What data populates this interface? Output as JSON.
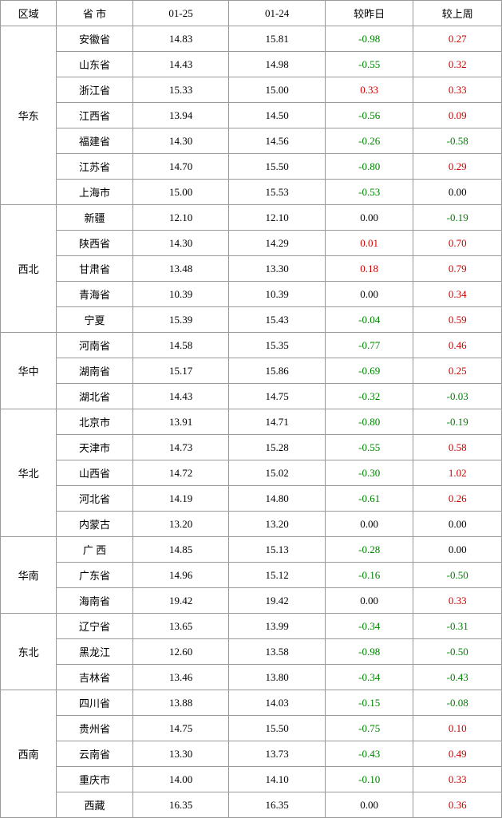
{
  "columns": [
    "区域",
    "省 市",
    "01-25",
    "01-24",
    "较昨日",
    "较上周"
  ],
  "colors": {
    "positive": "#cc0000",
    "negative": "#008000",
    "zero": "#000000"
  },
  "regions": [
    {
      "name": "华东",
      "rows": [
        {
          "prov": "安徽省",
          "d1": "14.83",
          "d2": "15.81",
          "dy": "-0.98",
          "dw": "0.27"
        },
        {
          "prov": "山东省",
          "d1": "14.43",
          "d2": "14.98",
          "dy": "-0.55",
          "dw": "0.32"
        },
        {
          "prov": "浙江省",
          "d1": "15.33",
          "d2": "15.00",
          "dy": "0.33",
          "dw": "0.33"
        },
        {
          "prov": "江西省",
          "d1": "13.94",
          "d2": "14.50",
          "dy": "-0.56",
          "dw": "0.09"
        },
        {
          "prov": "福建省",
          "d1": "14.30",
          "d2": "14.56",
          "dy": "-0.26",
          "dw": "-0.58"
        },
        {
          "prov": "江苏省",
          "d1": "14.70",
          "d2": "15.50",
          "dy": "-0.80",
          "dw": "0.29"
        },
        {
          "prov": "上海市",
          "d1": "15.00",
          "d2": "15.53",
          "dy": "-0.53",
          "dw": "0.00"
        }
      ]
    },
    {
      "name": "西北",
      "rows": [
        {
          "prov": "新疆",
          "d1": "12.10",
          "d2": "12.10",
          "dy": "0.00",
          "dw": "-0.19"
        },
        {
          "prov": "陕西省",
          "d1": "14.30",
          "d2": "14.29",
          "dy": "0.01",
          "dw": "0.70"
        },
        {
          "prov": "甘肃省",
          "d1": "13.48",
          "d2": "13.30",
          "dy": "0.18",
          "dw": "0.79"
        },
        {
          "prov": "青海省",
          "d1": "10.39",
          "d2": "10.39",
          "dy": "0.00",
          "dw": "0.34"
        },
        {
          "prov": "宁夏",
          "d1": "15.39",
          "d2": "15.43",
          "dy": "-0.04",
          "dw": "0.59"
        }
      ]
    },
    {
      "name": "华中",
      "rows": [
        {
          "prov": "河南省",
          "d1": "14.58",
          "d2": "15.35",
          "dy": "-0.77",
          "dw": "0.46"
        },
        {
          "prov": "湖南省",
          "d1": "15.17",
          "d2": "15.86",
          "dy": "-0.69",
          "dw": "0.25"
        },
        {
          "prov": "湖北省",
          "d1": "14.43",
          "d2": "14.75",
          "dy": "-0.32",
          "dw": "-0.03"
        }
      ]
    },
    {
      "name": "华北",
      "rows": [
        {
          "prov": "北京市",
          "d1": "13.91",
          "d2": "14.71",
          "dy": "-0.80",
          "dw": "-0.19"
        },
        {
          "prov": "天津市",
          "d1": "14.73",
          "d2": "15.28",
          "dy": "-0.55",
          "dw": "0.58"
        },
        {
          "prov": "山西省",
          "d1": "14.72",
          "d2": "15.02",
          "dy": "-0.30",
          "dw": "1.02"
        },
        {
          "prov": "河北省",
          "d1": "14.19",
          "d2": "14.80",
          "dy": "-0.61",
          "dw": "0.26"
        },
        {
          "prov": "内蒙古",
          "d1": "13.20",
          "d2": "13.20",
          "dy": "0.00",
          "dw": "0.00"
        }
      ]
    },
    {
      "name": "华南",
      "rows": [
        {
          "prov": "广 西",
          "d1": "14.85",
          "d2": "15.13",
          "dy": "-0.28",
          "dw": "0.00"
        },
        {
          "prov": "广东省",
          "d1": "14.96",
          "d2": "15.12",
          "dy": "-0.16",
          "dw": "-0.50"
        },
        {
          "prov": "海南省",
          "d1": "19.42",
          "d2": "19.42",
          "dy": "0.00",
          "dw": "0.33"
        }
      ]
    },
    {
      "name": "东北",
      "rows": [
        {
          "prov": "辽宁省",
          "d1": "13.65",
          "d2": "13.99",
          "dy": "-0.34",
          "dw": "-0.31"
        },
        {
          "prov": "黑龙江",
          "d1": "12.60",
          "d2": "13.58",
          "dy": "-0.98",
          "dw": "-0.50"
        },
        {
          "prov": "吉林省",
          "d1": "13.46",
          "d2": "13.80",
          "dy": "-0.34",
          "dw": "-0.43"
        }
      ]
    },
    {
      "name": "西南",
      "rows": [
        {
          "prov": "四川省",
          "d1": "13.88",
          "d2": "14.03",
          "dy": "-0.15",
          "dw": "-0.08"
        },
        {
          "prov": "贵州省",
          "d1": "14.75",
          "d2": "15.50",
          "dy": "-0.75",
          "dw": "0.10"
        },
        {
          "prov": "云南省",
          "d1": "13.30",
          "d2": "13.73",
          "dy": "-0.43",
          "dw": "0.49"
        },
        {
          "prov": "重庆市",
          "d1": "14.00",
          "d2": "14.10",
          "dy": "-0.10",
          "dw": "0.33"
        },
        {
          "prov": "西藏",
          "d1": "16.35",
          "d2": "16.35",
          "dy": "0.00",
          "dw": "0.36"
        }
      ]
    }
  ]
}
